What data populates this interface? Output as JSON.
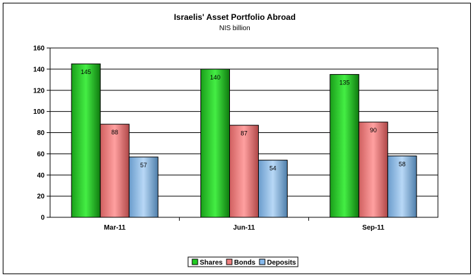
{
  "chart_data": {
    "type": "bar",
    "title": "Israelis' Asset Portfolio Abroad",
    "subtitle": "NIS billion",
    "categories": [
      "Mar-11",
      "Jun-11",
      "Sep-11"
    ],
    "series": [
      {
        "name": "Shares",
        "values": [
          145,
          140,
          135
        ],
        "color": "#22cc22"
      },
      {
        "name": "Bonds",
        "values": [
          88,
          87,
          90
        ],
        "color": "#f08080"
      },
      {
        "name": "Deposits",
        "values": [
          57,
          54,
          58
        ],
        "color": "#88bbee"
      }
    ],
    "ylim": [
      0,
      160
    ],
    "yticks": [
      0,
      20,
      40,
      60,
      80,
      100,
      120,
      140,
      160
    ],
    "grid": true,
    "legend_position": "bottom"
  }
}
